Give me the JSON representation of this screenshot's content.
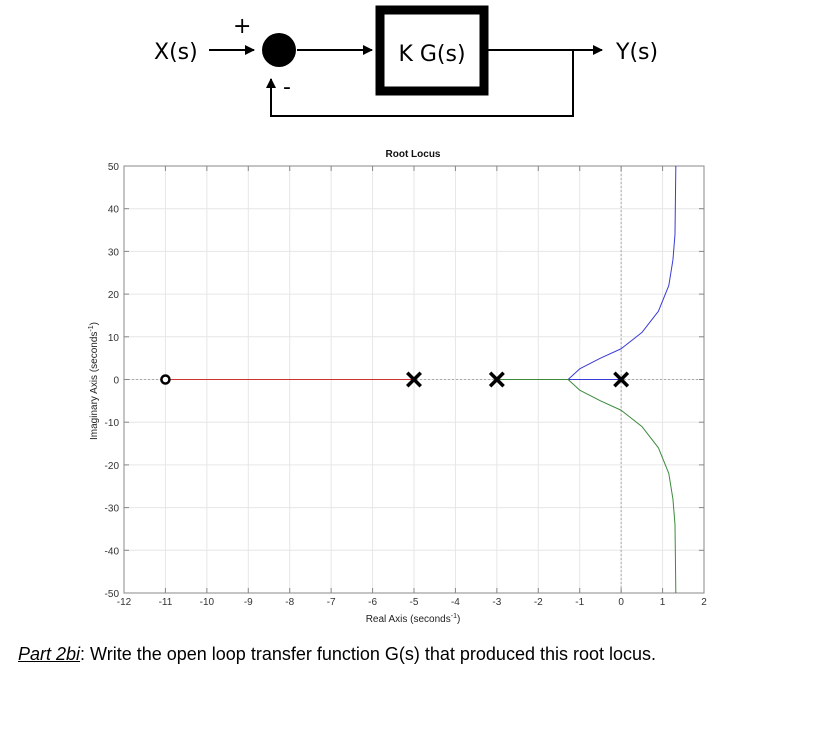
{
  "diagram": {
    "input_label": "X(s)",
    "output_label": "Y(s)",
    "block_label": "K G(s)",
    "plus_sign": "+",
    "minus_sign": "-"
  },
  "chart_data": {
    "type": "line",
    "title": "Root Locus",
    "xlabel": "Real Axis (seconds",
    "xlabel_sup": "-1",
    "xlabel_close": ")",
    "ylabel": "Imaginary Axis (seconds",
    "ylabel_sup": "-1",
    "ylabel_close": ")",
    "xlim": [
      -12,
      2
    ],
    "ylim": [
      -50,
      50
    ],
    "xticks": [
      -12,
      -11,
      -10,
      -9,
      -8,
      -7,
      -6,
      -5,
      -4,
      -3,
      -2,
      -1,
      0,
      1,
      2
    ],
    "yticks": [
      -50,
      -40,
      -30,
      -20,
      -10,
      0,
      10,
      20,
      30,
      40,
      50
    ],
    "grid": true,
    "poles": [
      [
        -5,
        0
      ],
      [
        -3,
        0
      ],
      [
        0,
        0
      ]
    ],
    "zeros": [
      [
        -11,
        0
      ]
    ],
    "series": [
      {
        "color": "#cc3333",
        "x": [
          -11,
          -5
        ],
        "y": [
          0,
          0
        ]
      },
      {
        "color": "#3b8a3b",
        "x": [
          -3,
          -1.28
        ],
        "y": [
          0,
          0
        ]
      },
      {
        "color": "#3a3ad6",
        "x": [
          0,
          -1.28
        ],
        "y": [
          0,
          0
        ]
      },
      {
        "color": "#3a3ad6",
        "x": [
          -1.28,
          -1.0,
          -0.5,
          0.0,
          0.5,
          0.9,
          1.15,
          1.25,
          1.3,
          1.31,
          1.32
        ],
        "y": [
          0,
          2.5,
          5.0,
          7.2,
          11,
          16,
          22,
          28,
          34,
          42,
          50
        ]
      },
      {
        "color": "#3b8a3b",
        "x": [
          -1.28,
          -1.0,
          -0.5,
          0.0,
          0.5,
          0.9,
          1.15,
          1.25,
          1.3,
          1.31,
          1.32
        ],
        "y": [
          0,
          -2.5,
          -5.0,
          -7.2,
          -11,
          -16,
          -22,
          -28,
          -34,
          -42,
          -50
        ]
      }
    ]
  },
  "question": {
    "part_label": "Part 2bi",
    "text": ": Write the open loop transfer function G(s) that produced this root locus."
  }
}
